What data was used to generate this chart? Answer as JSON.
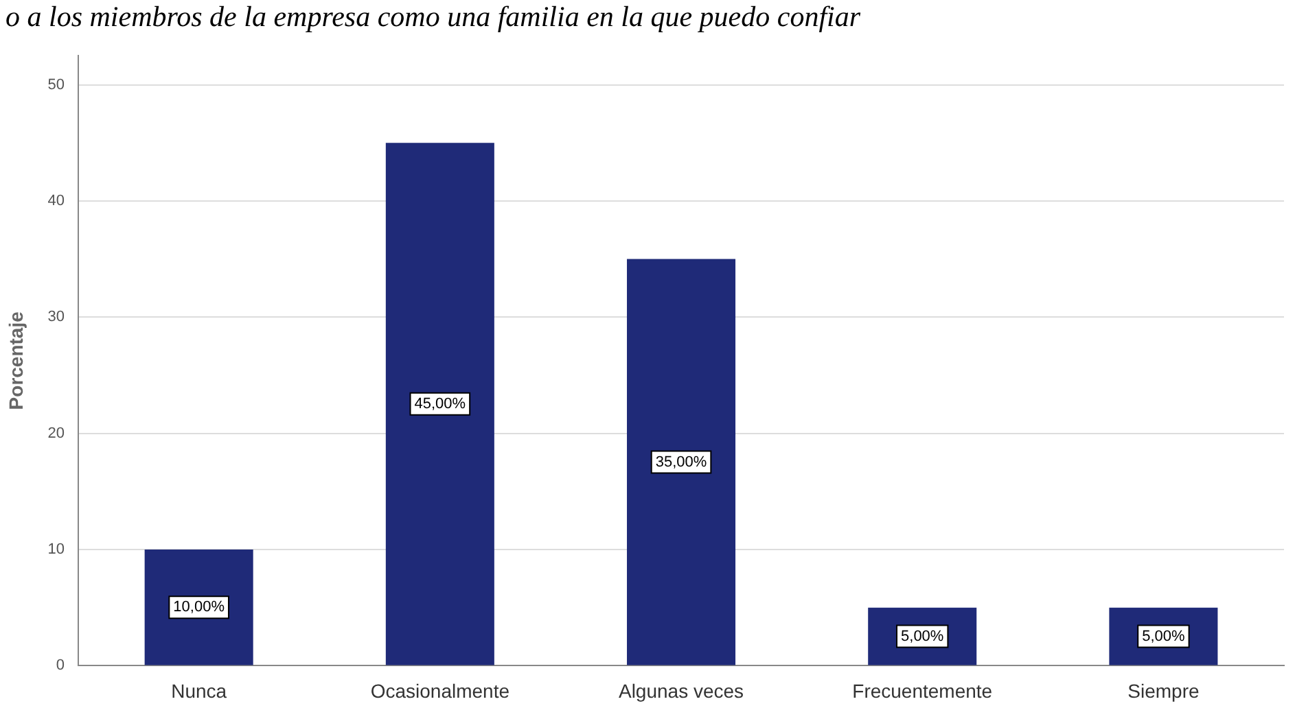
{
  "chart_data": {
    "type": "bar",
    "title": "o a los miembros de la empresa como una familia en la que puedo confiar",
    "ylabel": "Porcentaje",
    "categories": [
      "Nunca",
      "Ocasionalmente",
      "Algunas veces",
      "Frecuentemente",
      "Siempre"
    ],
    "values": [
      10,
      45,
      35,
      5,
      5
    ],
    "color": "#1f2a78",
    "value_labels": [
      "10,00%",
      "45,00%",
      "35,00%",
      "5,00%",
      "5,00%"
    ],
    "ylim": [
      0,
      52.5
    ],
    "yticks": [
      0,
      10,
      20,
      30,
      40,
      50
    ],
    "grid": "y"
  }
}
